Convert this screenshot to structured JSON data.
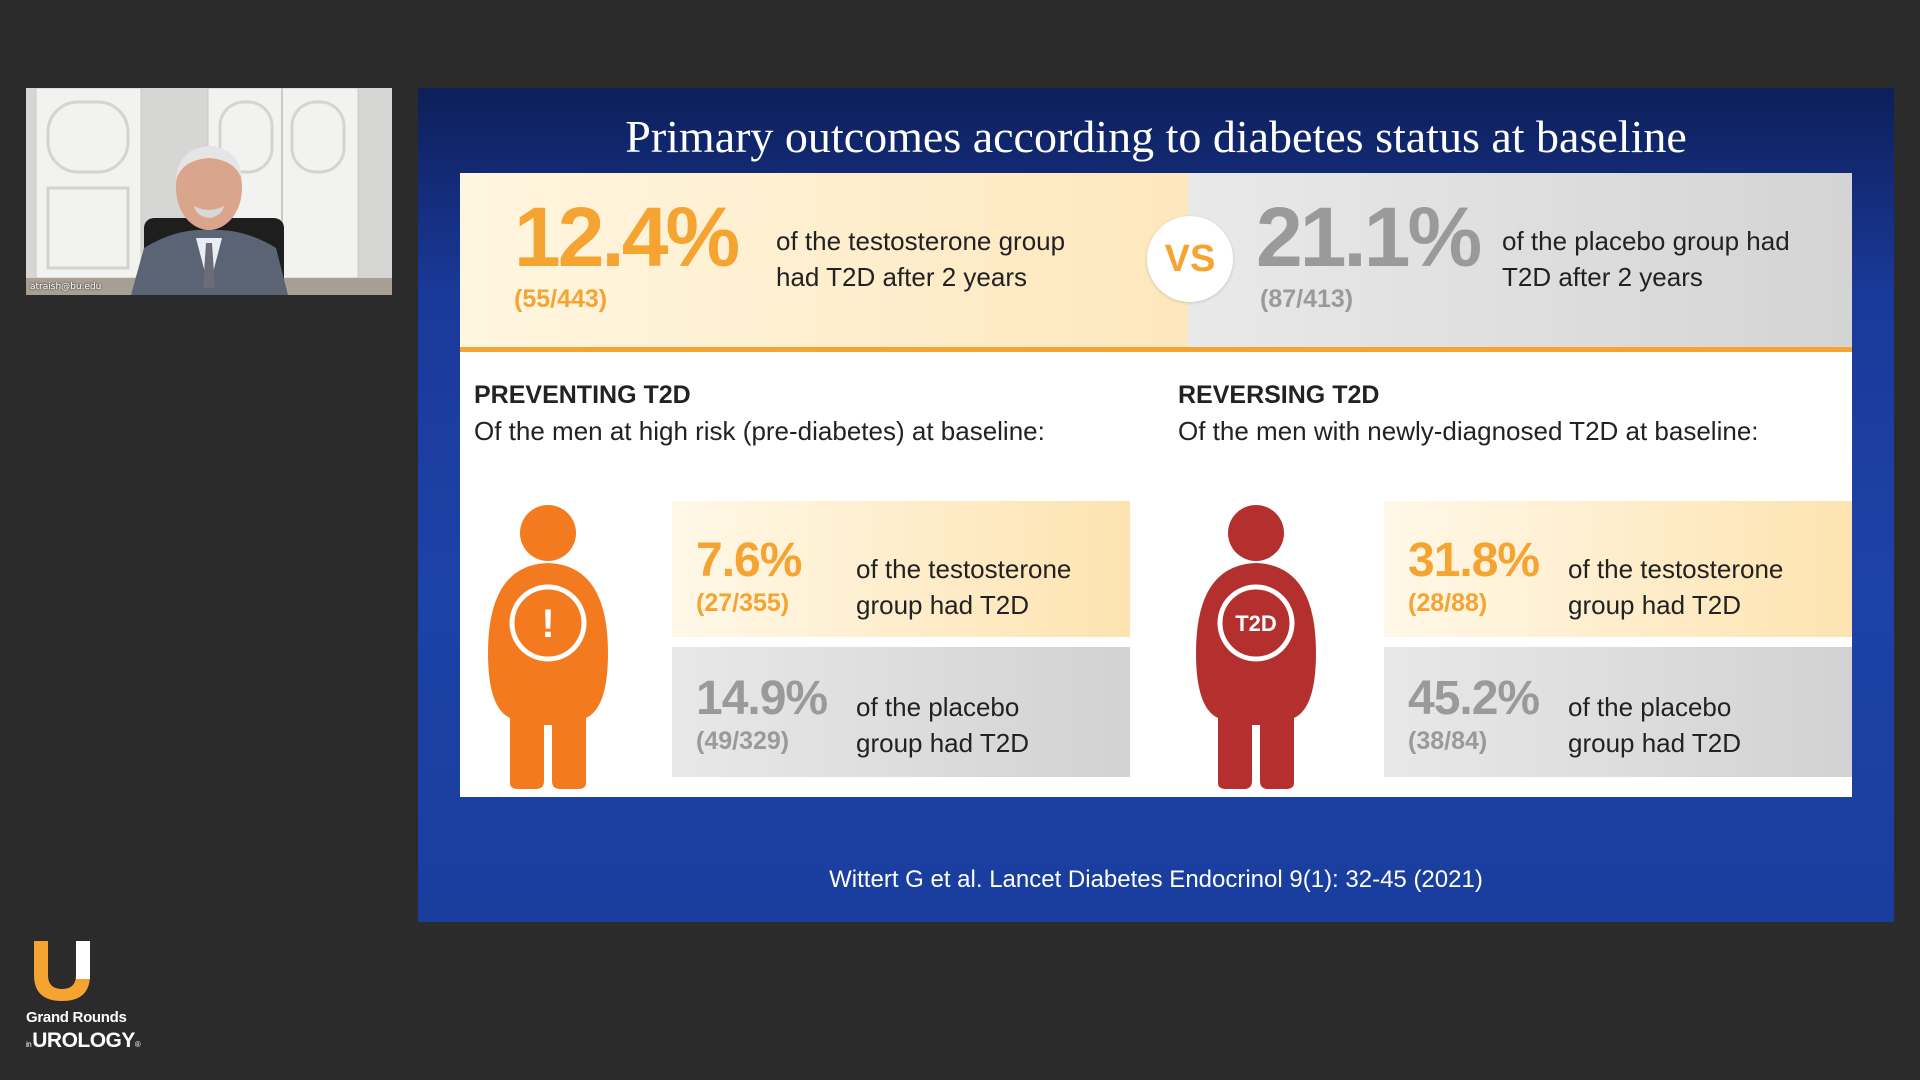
{
  "webcam": {
    "name": "atraish@bu.edu"
  },
  "logo": {
    "line1": "Grand Rounds",
    "line2_prefix": "in",
    "line2": "UROLOGY",
    "mark": "®",
    "brand_color": "#f5a431"
  },
  "slide": {
    "title": "Primary outcomes according to diabetes status at baseline",
    "top": {
      "testosterone_pct": "12.4%",
      "testosterone_frac": "(55/443)",
      "testosterone_desc_1": "of the testosterone group",
      "testosterone_desc_2": "had T2D after 2 years",
      "vs": "VS",
      "placebo_pct": "21.1%",
      "placebo_frac": "(87/413)",
      "placebo_desc_1": "of the placebo group had",
      "placebo_desc_2": "T2D after 2 years"
    },
    "preventing": {
      "heading": "PREVENTING T2D",
      "subheading": "Of the men at high risk (pre-diabetes) at baseline:",
      "icon_symbol": "!",
      "testosterone_pct": "7.6%",
      "testosterone_frac": "(27/355)",
      "testosterone_desc_1": "of the testosterone",
      "testosterone_desc_2": "group had T2D",
      "placebo_pct": "14.9%",
      "placebo_frac": "(49/329)",
      "placebo_desc_1": "of the placebo",
      "placebo_desc_2": "group had T2D"
    },
    "reversing": {
      "heading": "REVERSING T2D",
      "subheading": "Of the men with newly-diagnosed T2D at baseline:",
      "icon_symbol": "T2D",
      "testosterone_pct": "31.8%",
      "testosterone_frac": "(28/88)",
      "testosterone_desc_1": "of the testosterone",
      "testosterone_desc_2": "group had T2D",
      "placebo_pct": "45.2%",
      "placebo_frac": "(38/84)",
      "placebo_desc_1": "of the placebo",
      "placebo_desc_2": "group had T2D"
    },
    "citation": "Wittert G et al. Lancet Diabetes Endocrinol 9(1): 32-45 (2021)",
    "colors": {
      "orange": "#f5a431",
      "person_orange": "#f47a20",
      "person_red": "#b3302f",
      "gray": "#9a9a9a",
      "background_blue": "#1d42a8"
    }
  }
}
